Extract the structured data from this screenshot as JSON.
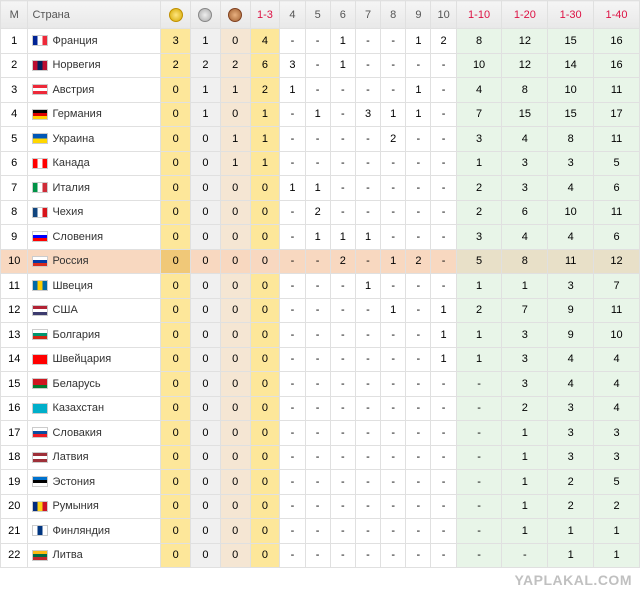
{
  "watermark": "YAPLAKAL.COM",
  "headers": {
    "rank": "М",
    "country": "Страна",
    "r13": "1-3",
    "r110": "1-10",
    "r120": "1-20",
    "r130": "1-30",
    "r140": "1-40",
    "n4": "4",
    "n5": "5",
    "n6": "6",
    "n7": "7",
    "n8": "8",
    "n9": "9",
    "n10": "10"
  },
  "rows": [
    {
      "m": 1,
      "country": "Франция",
      "flag": [
        "#002395",
        "#fff",
        "#ed2939"
      ],
      "g": 3,
      "s": 1,
      "b": 0,
      "t13": 4,
      "p": [
        "-",
        "-",
        "1",
        "-",
        "-",
        "1",
        "2"
      ],
      "r": [
        8,
        12,
        15,
        16
      ]
    },
    {
      "m": 2,
      "country": "Норвегия",
      "flag": [
        "#ba0c2f",
        "#00205b",
        "#ba0c2f"
      ],
      "g": 2,
      "s": 2,
      "b": 2,
      "t13": 6,
      "p": [
        "3",
        "-",
        "1",
        "-",
        "-",
        "-",
        "-"
      ],
      "r": [
        10,
        12,
        14,
        16
      ]
    },
    {
      "m": 3,
      "country": "Австрия",
      "flag": [
        "#ed2939",
        "#fff",
        "#ed2939"
      ],
      "flagRows": true,
      "g": 0,
      "s": 1,
      "b": 1,
      "t13": 2,
      "p": [
        "1",
        "-",
        "-",
        "-",
        "-",
        "1",
        "-"
      ],
      "r": [
        4,
        8,
        10,
        11
      ]
    },
    {
      "m": 4,
      "country": "Германия",
      "flag": [
        "#000",
        "#dd0000",
        "#ffce00"
      ],
      "flagRows": true,
      "g": 0,
      "s": 1,
      "b": 0,
      "t13": 1,
      "p": [
        "-",
        "1",
        "-",
        "3",
        "1",
        "1",
        "-"
      ],
      "r": [
        7,
        15,
        15,
        17
      ]
    },
    {
      "m": 5,
      "country": "Украина",
      "flag": [
        "#0057b7",
        "#ffd700"
      ],
      "flagRows": true,
      "g": 0,
      "s": 0,
      "b": 1,
      "t13": 1,
      "p": [
        "-",
        "-",
        "-",
        "-",
        "2",
        "-",
        "-"
      ],
      "r": [
        3,
        4,
        8,
        11
      ]
    },
    {
      "m": 6,
      "country": "Канада",
      "flag": [
        "#f00",
        "#fff",
        "#f00"
      ],
      "g": 0,
      "s": 0,
      "b": 1,
      "t13": 1,
      "p": [
        "-",
        "-",
        "-",
        "-",
        "-",
        "-",
        "-"
      ],
      "r": [
        1,
        3,
        3,
        5
      ]
    },
    {
      "m": 7,
      "country": "Италия",
      "flag": [
        "#009246",
        "#fff",
        "#ce2b37"
      ],
      "g": 0,
      "s": 0,
      "b": 0,
      "t13": 0,
      "p": [
        "1",
        "1",
        "-",
        "-",
        "-",
        "-",
        "-"
      ],
      "r": [
        2,
        3,
        4,
        6
      ]
    },
    {
      "m": 8,
      "country": "Чехия",
      "flag": [
        "#11457e",
        "#fff",
        "#d7141a"
      ],
      "g": 0,
      "s": 0,
      "b": 0,
      "t13": 0,
      "p": [
        "-",
        "2",
        "-",
        "-",
        "-",
        "-",
        "-"
      ],
      "r": [
        2,
        6,
        10,
        11
      ]
    },
    {
      "m": 9,
      "country": "Словения",
      "flag": [
        "#fff",
        "#0000ff",
        "#ff0000"
      ],
      "flagRows": true,
      "g": 0,
      "s": 0,
      "b": 0,
      "t13": 0,
      "p": [
        "-",
        "1",
        "1",
        "1",
        "-",
        "-",
        "-"
      ],
      "r": [
        3,
        4,
        4,
        6
      ]
    },
    {
      "m": 10,
      "country": "Россия",
      "flag": [
        "#fff",
        "#0039a6",
        "#d52b1e"
      ],
      "flagRows": true,
      "g": 0,
      "s": 0,
      "b": 0,
      "t13": 0,
      "p": [
        "-",
        "-",
        "2",
        "-",
        "1",
        "2",
        "-"
      ],
      "r": [
        5,
        8,
        11,
        12
      ],
      "highlight": true
    },
    {
      "m": 11,
      "country": "Швеция",
      "flag": [
        "#006aa7",
        "#fecc00",
        "#006aa7"
      ],
      "g": 0,
      "s": 0,
      "b": 0,
      "t13": 0,
      "p": [
        "-",
        "-",
        "-",
        "1",
        "-",
        "-",
        "-"
      ],
      "r": [
        1,
        1,
        3,
        7
      ]
    },
    {
      "m": 12,
      "country": "США",
      "flag": [
        "#b22234",
        "#fff",
        "#3c3b6e"
      ],
      "flagRows": true,
      "g": 0,
      "s": 0,
      "b": 0,
      "t13": 0,
      "p": [
        "-",
        "-",
        "-",
        "-",
        "1",
        "-",
        "1"
      ],
      "r": [
        2,
        7,
        9,
        11
      ]
    },
    {
      "m": 13,
      "country": "Болгария",
      "flag": [
        "#fff",
        "#00966e",
        "#d62612"
      ],
      "flagRows": true,
      "g": 0,
      "s": 0,
      "b": 0,
      "t13": 0,
      "p": [
        "-",
        "-",
        "-",
        "-",
        "-",
        "-",
        "1"
      ],
      "r": [
        1,
        3,
        9,
        10
      ]
    },
    {
      "m": 14,
      "country": "Швейцария",
      "flag": [
        "#f00",
        "#f00",
        "#f00"
      ],
      "g": 0,
      "s": 0,
      "b": 0,
      "t13": 0,
      "p": [
        "-",
        "-",
        "-",
        "-",
        "-",
        "-",
        "1"
      ],
      "r": [
        1,
        3,
        4,
        4
      ]
    },
    {
      "m": 15,
      "country": "Беларусь",
      "flag": [
        "#ce1720",
        "#ce1720",
        "#007c30"
      ],
      "flagRows": true,
      "g": 0,
      "s": 0,
      "b": 0,
      "t13": 0,
      "p": [
        "-",
        "-",
        "-",
        "-",
        "-",
        "-",
        "-"
      ],
      "r": [
        "-",
        3,
        4,
        4
      ]
    },
    {
      "m": 16,
      "country": "Казахстан",
      "flag": [
        "#00afca",
        "#00afca",
        "#00afca"
      ],
      "g": 0,
      "s": 0,
      "b": 0,
      "t13": 0,
      "p": [
        "-",
        "-",
        "-",
        "-",
        "-",
        "-",
        "-"
      ],
      "r": [
        "-",
        2,
        3,
        4
      ]
    },
    {
      "m": 17,
      "country": "Словакия",
      "flag": [
        "#fff",
        "#0b4ea2",
        "#ee1c25"
      ],
      "flagRows": true,
      "g": 0,
      "s": 0,
      "b": 0,
      "t13": 0,
      "p": [
        "-",
        "-",
        "-",
        "-",
        "-",
        "-",
        "-"
      ],
      "r": [
        "-",
        1,
        3,
        3
      ]
    },
    {
      "m": 18,
      "country": "Латвия",
      "flag": [
        "#9e3039",
        "#fff",
        "#9e3039"
      ],
      "flagRows": true,
      "g": 0,
      "s": 0,
      "b": 0,
      "t13": 0,
      "p": [
        "-",
        "-",
        "-",
        "-",
        "-",
        "-",
        "-"
      ],
      "r": [
        "-",
        1,
        3,
        3
      ]
    },
    {
      "m": 19,
      "country": "Эстония",
      "flag": [
        "#0072ce",
        "#000",
        "#fff"
      ],
      "flagRows": true,
      "g": 0,
      "s": 0,
      "b": 0,
      "t13": 0,
      "p": [
        "-",
        "-",
        "-",
        "-",
        "-",
        "-",
        "-"
      ],
      "r": [
        "-",
        1,
        2,
        5
      ]
    },
    {
      "m": 20,
      "country": "Румыния",
      "flag": [
        "#002b7f",
        "#fcd116",
        "#ce1126"
      ],
      "g": 0,
      "s": 0,
      "b": 0,
      "t13": 0,
      "p": [
        "-",
        "-",
        "-",
        "-",
        "-",
        "-",
        "-"
      ],
      "r": [
        "-",
        1,
        2,
        2
      ]
    },
    {
      "m": 21,
      "country": "Финляндия",
      "flag": [
        "#fff",
        "#003580",
        "#fff"
      ],
      "g": 0,
      "s": 0,
      "b": 0,
      "t13": 0,
      "p": [
        "-",
        "-",
        "-",
        "-",
        "-",
        "-",
        "-"
      ],
      "r": [
        "-",
        1,
        1,
        1
      ]
    },
    {
      "m": 22,
      "country": "Литва",
      "flag": [
        "#fdb913",
        "#006a44",
        "#c1272d"
      ],
      "flagRows": true,
      "g": 0,
      "s": 0,
      "b": 0,
      "t13": 0,
      "p": [
        "-",
        "-",
        "-",
        "-",
        "-",
        "-",
        "-"
      ],
      "r": [
        "-",
        "-",
        1,
        1
      ]
    }
  ]
}
